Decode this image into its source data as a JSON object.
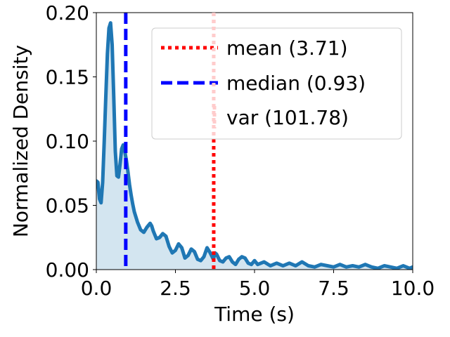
{
  "chart_data": {
    "type": "area",
    "xlabel": "Time (s)",
    "ylabel": "Normalized Density",
    "xlim": [
      0,
      10
    ],
    "ylim": [
      0,
      0.2
    ],
    "xticks": [
      0,
      2.5,
      5,
      7.5,
      10
    ],
    "xtick_labels": [
      "0.0",
      "2.5",
      "5.0",
      "7.5",
      "10.0"
    ],
    "yticks": [
      0,
      0.05,
      0.1,
      0.15,
      0.2
    ],
    "ytick_labels": [
      "0.00",
      "0.05",
      "0.10",
      "0.15",
      "0.20"
    ],
    "grid": false,
    "legend_position": "top-right",
    "colors": {
      "density": "#1f77b4",
      "fill": "#d3e5f0",
      "mean": "#ff0000",
      "median": "#0000ff",
      "var": "#ffcccc"
    },
    "series": [
      {
        "x": [
          0.0,
          0.05,
          0.1,
          0.15,
          0.2,
          0.25,
          0.3,
          0.35,
          0.4,
          0.45,
          0.5,
          0.55,
          0.6,
          0.65,
          0.7,
          0.75,
          0.8,
          0.85,
          0.9,
          0.95,
          1.0,
          1.05,
          1.1,
          1.15,
          1.2,
          1.3,
          1.4,
          1.5,
          1.6,
          1.7,
          1.75,
          1.8,
          1.9,
          2.0,
          2.1,
          2.2,
          2.3,
          2.4,
          2.5,
          2.6,
          2.7,
          2.8,
          2.9,
          3.0,
          3.1,
          3.2,
          3.3,
          3.4,
          3.5,
          3.6,
          3.7,
          3.75,
          3.8,
          3.9,
          4.0,
          4.1,
          4.2,
          4.3,
          4.4,
          4.5,
          4.6,
          4.7,
          4.8,
          4.9,
          5.0,
          5.1,
          5.3,
          5.5,
          5.7,
          5.9,
          6.1,
          6.3,
          6.5,
          6.7,
          6.9,
          7.1,
          7.3,
          7.5,
          7.7,
          7.9,
          8.1,
          8.3,
          8.5,
          8.7,
          8.9,
          9.1,
          9.3,
          9.5,
          9.7,
          9.9,
          10.0
        ],
        "y": [
          0.069,
          0.068,
          0.055,
          0.052,
          0.068,
          0.1,
          0.135,
          0.168,
          0.188,
          0.192,
          0.175,
          0.135,
          0.092,
          0.073,
          0.072,
          0.082,
          0.094,
          0.097,
          0.092,
          0.085,
          0.076,
          0.066,
          0.058,
          0.051,
          0.045,
          0.037,
          0.031,
          0.029,
          0.033,
          0.036,
          0.034,
          0.03,
          0.024,
          0.025,
          0.028,
          0.026,
          0.018,
          0.013,
          0.015,
          0.02,
          0.017,
          0.009,
          0.011,
          0.016,
          0.014,
          0.008,
          0.007,
          0.01,
          0.017,
          0.013,
          0.008,
          0.013,
          0.012,
          0.007,
          0.006,
          0.009,
          0.01,
          0.006,
          0.004,
          0.008,
          0.01,
          0.009,
          0.005,
          0.004,
          0.007,
          0.004,
          0.006,
          0.003,
          0.005,
          0.003,
          0.005,
          0.003,
          0.006,
          0.003,
          0.002,
          0.004,
          0.003,
          0.002,
          0.004,
          0.002,
          0.003,
          0.002,
          0.004,
          0.002,
          0.001,
          0.003,
          0.002,
          0.001,
          0.003,
          0.001,
          0.002
        ]
      }
    ],
    "vlines": [
      {
        "name": "mean (3.71)",
        "x": 3.71,
        "style": "dotted",
        "color": "#ff0000"
      },
      {
        "name": "median (0.93)",
        "x": 0.93,
        "style": "dashed",
        "color": "#0000ff"
      }
    ],
    "legend": [
      {
        "label": "mean (3.71)",
        "style": "dotted",
        "color": "#ff0000"
      },
      {
        "label": "median (0.93)",
        "style": "dashed",
        "color": "#0000ff"
      },
      {
        "label": "var (101.78)",
        "style": "none",
        "color": "#ffcccc"
      }
    ]
  }
}
